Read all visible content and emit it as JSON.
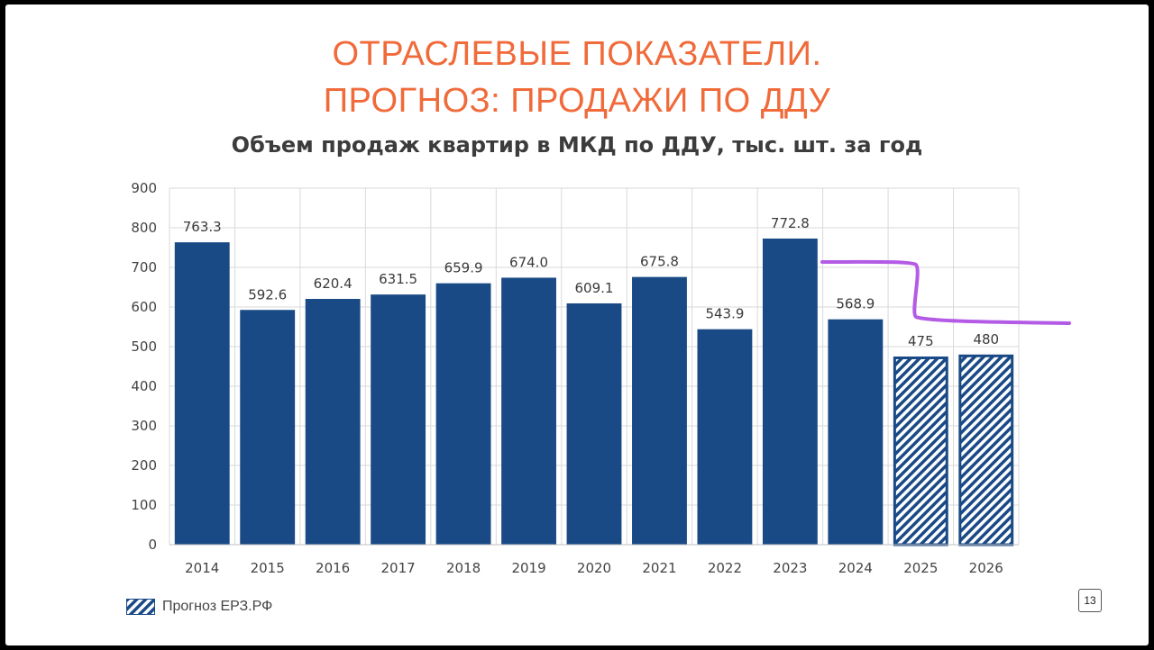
{
  "slide": {
    "title_line1": "ОТРАСЛЕВЫЕ ПОКАЗАТЕЛИ.",
    "title_line2": "ПРОГНОЗ: ПРОДАЖИ ПО ДДУ",
    "page_number": "13"
  },
  "legend": {
    "forecast_label": "Прогноз ЕРЗ.РФ"
  },
  "colors": {
    "title": "#f06a3a",
    "bar": "#1a4a86",
    "forecast_hatch": "#1a4a86",
    "annotation_line": "#b45be6"
  },
  "chart_data": {
    "type": "bar",
    "title": "Объем продаж квартир в МКД по ДДУ, тыс. шт. за год",
    "xlabel": "",
    "ylabel": "",
    "ylim": [
      0,
      900
    ],
    "yticks": [
      0,
      100,
      200,
      300,
      400,
      500,
      600,
      700,
      800,
      900
    ],
    "grid": true,
    "categories": [
      "2014",
      "2015",
      "2016",
      "2017",
      "2018",
      "2019",
      "2020",
      "2021",
      "2022",
      "2023",
      "2024",
      "2025",
      "2026"
    ],
    "values": [
      763.3,
      592.6,
      620.4,
      631.5,
      659.9,
      674.0,
      609.1,
      675.8,
      543.9,
      772.8,
      568.9,
      475,
      480
    ],
    "labels": [
      "763.3",
      "592.6",
      "620.4",
      "631.5",
      "659.9",
      "674.0",
      "609.1",
      "675.8",
      "543.9",
      "772.8",
      "568.9",
      "475",
      "480"
    ],
    "forecast": [
      false,
      false,
      false,
      false,
      false,
      false,
      false,
      false,
      false,
      false,
      false,
      true,
      true
    ]
  }
}
